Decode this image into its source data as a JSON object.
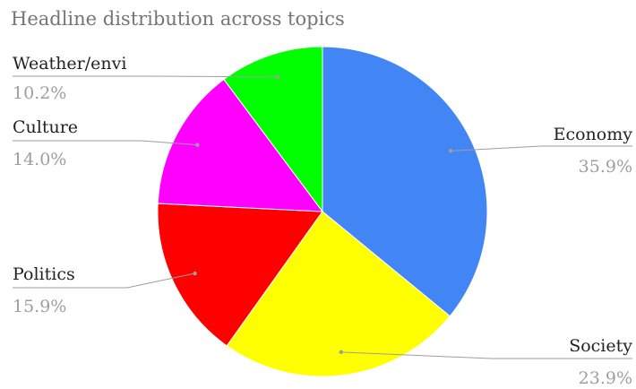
{
  "chart_data": {
    "type": "pie",
    "title": "Headline distribution across topics",
    "slices": [
      {
        "name": "Economy",
        "value": 35.9,
        "label": "35.9%",
        "color": "#4285f4"
      },
      {
        "name": "Society",
        "value": 23.9,
        "label": "23.9%",
        "color": "#ffff00"
      },
      {
        "name": "Politics",
        "value": 15.9,
        "label": "15.9%",
        "color": "#ff0000"
      },
      {
        "name": "Culture",
        "value": 14.0,
        "label": "14.0%",
        "color": "#ff00ff"
      },
      {
        "name": "Weather/envi",
        "value": 10.2,
        "label": "10.2%",
        "color": "#00ff00"
      }
    ],
    "legend": "none",
    "start_angle": "top, clockwise"
  }
}
